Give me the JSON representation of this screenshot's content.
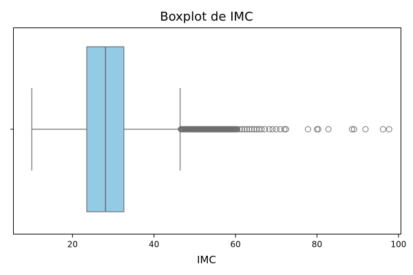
{
  "chart_data": {
    "type": "boxplot",
    "title": "Boxplot de IMC",
    "xlabel": "IMC",
    "ylabel": "",
    "xlim": [
      5.5,
      100.6
    ],
    "xticks": [
      20,
      40,
      60,
      80,
      100
    ],
    "orientation": "horizontal",
    "grid": false,
    "colors": {
      "box_fill": "#92cbe3",
      "line": "#6e6e6e",
      "axis": "#000000"
    },
    "box": {
      "whisker_low": 10.0,
      "q1": 23.5,
      "median": 28.1,
      "q3": 32.6,
      "whisker_high": 46.4
    },
    "outliers_dense_range": [
      46.6,
      60.5
    ],
    "outliers": [
      61.0,
      61.6,
      62.2,
      62.8,
      63.4,
      64.0,
      64.6,
      65.2,
      65.8,
      66.4,
      67.2,
      68.3,
      69.1,
      70.0,
      71.0,
      72.0,
      72.4,
      77.8,
      80.0,
      80.3,
      82.8,
      88.6,
      89.1,
      91.9,
      96.2,
      97.7
    ]
  }
}
